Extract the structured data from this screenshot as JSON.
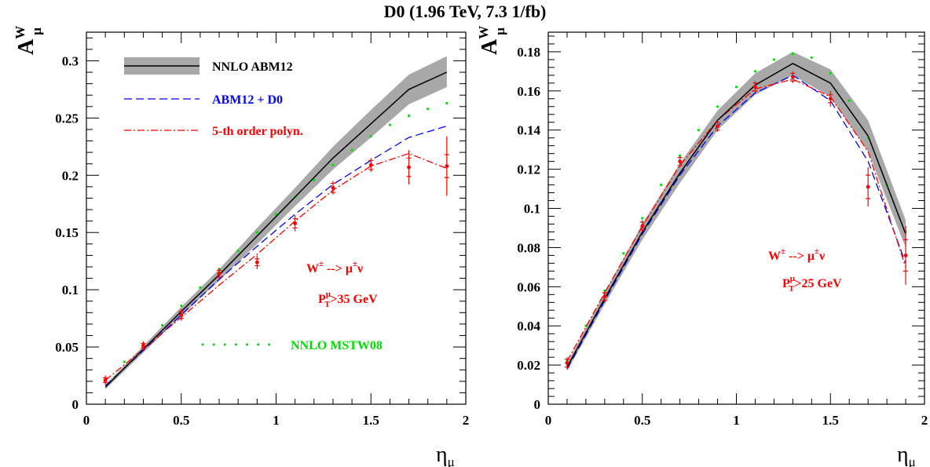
{
  "title": "D0 (1.96 TeV, 7.3 1/fb)",
  "colors": {
    "nnlo_abm12": "#000000",
    "band": "#a8a8a8",
    "abm12_d0": "#0000ff",
    "polyn": "#ff0000",
    "mstw08": "#00e000",
    "data": "#ff0000"
  },
  "chart_data": [
    {
      "type": "line",
      "panel": "left",
      "ylabel_main": "A",
      "ylabel_sup": "W",
      "ylabel_sub": "μ",
      "xlabel_main": "η",
      "xlabel_sub": "μ",
      "xlim": [
        0,
        2
      ],
      "ylim": [
        0,
        0.325
      ],
      "xticks": [
        0,
        0.5,
        1,
        1.5,
        2
      ],
      "xtick_labels": [
        "0",
        "0.5",
        "1",
        "1.5",
        "2"
      ],
      "yticks": [
        0,
        0.05,
        0.1,
        0.15,
        0.2,
        0.25,
        0.3
      ],
      "ytick_labels": [
        "0",
        "0.05",
        "0.1",
        "0.15",
        "0.2",
        "0.25",
        "0.3"
      ],
      "legend": [
        {
          "label": "NNLO ABM12",
          "style": "band",
          "color": "#000000"
        },
        {
          "label": "ABM12 + D0",
          "style": "dashed",
          "color": "#0000ff"
        },
        {
          "label": "5-th order polyn.",
          "style": "dashdot",
          "color": "#ff0000"
        },
        {
          "label": "NNLO MSTW08",
          "style": "dotted",
          "color": "#00e000"
        }
      ],
      "annotations": {
        "process": {
          "main": "W",
          "sup1": "±",
          "arrow": " --> μ",
          "sup2": "±",
          "tail": "ν"
        },
        "cut": {
          "main": "P",
          "sup": "μ",
          "sub": "T",
          "tail": ">35 GeV"
        }
      },
      "series": [
        {
          "name": "NNLO ABM12",
          "x": [
            0.1,
            0.3,
            0.5,
            0.7,
            0.9,
            1.1,
            1.3,
            1.5,
            1.7,
            1.9
          ],
          "y": [
            0.015,
            0.048,
            0.081,
            0.113,
            0.147,
            0.181,
            0.215,
            0.245,
            0.275,
            0.29
          ],
          "band_lo": [
            0.013,
            0.045,
            0.077,
            0.108,
            0.14,
            0.173,
            0.205,
            0.233,
            0.262,
            0.277
          ],
          "band_hi": [
            0.017,
            0.051,
            0.085,
            0.118,
            0.154,
            0.189,
            0.225,
            0.257,
            0.288,
            0.304
          ]
        },
        {
          "name": "ABM12 + D0",
          "x": [
            0.1,
            0.3,
            0.5,
            0.7,
            0.9,
            1.1,
            1.3,
            1.5,
            1.7,
            1.9
          ],
          "y": [
            0.016,
            0.047,
            0.078,
            0.109,
            0.138,
            0.166,
            0.192,
            0.213,
            0.233,
            0.243
          ]
        },
        {
          "name": "5-th order polyn.",
          "x": [
            0.1,
            0.3,
            0.5,
            0.7,
            0.9,
            1.1,
            1.3,
            1.5,
            1.7,
            1.9
          ],
          "y": [
            0.021,
            0.048,
            0.076,
            0.104,
            0.131,
            0.16,
            0.187,
            0.208,
            0.219,
            0.206
          ]
        },
        {
          "name": "NNLO MSTW08",
          "x": [
            0.1,
            0.2,
            0.3,
            0.4,
            0.5,
            0.6,
            0.7,
            0.8,
            0.9,
            1.0,
            1.1,
            1.2,
            1.3,
            1.4,
            1.5,
            1.6,
            1.7,
            1.8,
            1.9
          ],
          "y": [
            0.021,
            0.037,
            0.053,
            0.069,
            0.086,
            0.102,
            0.118,
            0.134,
            0.15,
            0.166,
            0.181,
            0.196,
            0.209,
            0.222,
            0.234,
            0.244,
            0.252,
            0.258,
            0.263
          ]
        },
        {
          "name": "data",
          "x": [
            0.1,
            0.3,
            0.5,
            0.7,
            0.9,
            1.1,
            1.3,
            1.5,
            1.7,
            1.9
          ],
          "y": [
            0.021,
            0.051,
            0.078,
            0.114,
            0.124,
            0.158,
            0.189,
            0.209,
            0.207,
            0.208
          ],
          "err_stat": [
            0.002,
            0.002,
            0.003,
            0.003,
            0.003,
            0.004,
            0.004,
            0.004,
            0.008,
            0.01
          ],
          "err_tot": [
            0.004,
            0.004,
            0.005,
            0.005,
            0.006,
            0.007,
            0.006,
            0.006,
            0.015,
            0.026
          ]
        }
      ]
    },
    {
      "type": "line",
      "panel": "right",
      "ylabel_main": "A",
      "ylabel_sup": "W",
      "ylabel_sub": "μ",
      "xlabel_main": "η",
      "xlabel_sub": "μ",
      "xlim": [
        0,
        2
      ],
      "ylim": [
        0,
        0.19
      ],
      "xticks": [
        0,
        0.5,
        1,
        1.5,
        2
      ],
      "xtick_labels": [
        "0",
        "0.5",
        "1",
        "1.5",
        "2"
      ],
      "yticks": [
        0,
        0.02,
        0.04,
        0.06,
        0.08,
        0.1,
        0.12,
        0.14,
        0.16,
        0.18
      ],
      "ytick_labels": [
        "0",
        "0.02",
        "0.04",
        "0.06",
        "0.08",
        "0.1",
        "0.12",
        "0.14",
        "0.16",
        "0.18"
      ],
      "annotations": {
        "process": {
          "main": "W",
          "sup1": "±",
          "arrow": " --> μ",
          "sup2": "±",
          "tail": "ν"
        },
        "cut": {
          "main": "P",
          "sup": "μ",
          "sub": "T",
          "tail": ">25 GeV"
        }
      },
      "series": [
        {
          "name": "NNLO ABM12",
          "x": [
            0.1,
            0.3,
            0.5,
            0.7,
            0.9,
            1.1,
            1.3,
            1.5,
            1.7,
            1.9
          ],
          "y": [
            0.019,
            0.054,
            0.088,
            0.118,
            0.145,
            0.163,
            0.174,
            0.164,
            0.137,
            0.087
          ],
          "band_lo": [
            0.017,
            0.051,
            0.084,
            0.113,
            0.14,
            0.158,
            0.168,
            0.157,
            0.129,
            0.08
          ],
          "band_hi": [
            0.021,
            0.057,
            0.092,
            0.123,
            0.15,
            0.169,
            0.18,
            0.171,
            0.145,
            0.094
          ]
        },
        {
          "name": "ABM12 + D0",
          "x": [
            0.1,
            0.3,
            0.5,
            0.7,
            0.9,
            1.1,
            1.3,
            1.5,
            1.7,
            1.9
          ],
          "y": [
            0.018,
            0.053,
            0.087,
            0.117,
            0.142,
            0.159,
            0.168,
            0.155,
            0.124,
            0.072
          ]
        },
        {
          "name": "5-th order polyn.",
          "x": [
            0.1,
            0.3,
            0.5,
            0.7,
            0.9,
            1.1,
            1.3,
            1.5,
            1.7,
            1.9
          ],
          "y": [
            0.022,
            0.057,
            0.091,
            0.122,
            0.145,
            0.161,
            0.166,
            0.157,
            0.129,
            0.07
          ]
        },
        {
          "name": "NNLO MSTW08",
          "x": [
            0.1,
            0.2,
            0.3,
            0.4,
            0.5,
            0.6,
            0.7,
            0.8,
            0.9,
            1.0,
            1.1,
            1.2,
            1.3,
            1.4,
            1.5,
            1.6,
            1.7,
            1.8,
            1.9
          ],
          "y": [
            0.022,
            0.04,
            0.058,
            0.077,
            0.095,
            0.112,
            0.127,
            0.14,
            0.152,
            0.162,
            0.17,
            0.176,
            0.179,
            0.177,
            0.169,
            0.155,
            0.136,
            0.112,
            0.088
          ]
        },
        {
          "name": "data",
          "x": [
            0.1,
            0.3,
            0.5,
            0.7,
            0.9,
            1.1,
            1.3,
            1.5,
            1.7,
            1.9
          ],
          "y": [
            0.021,
            0.055,
            0.091,
            0.124,
            0.142,
            0.162,
            0.167,
            0.156,
            0.111,
            0.076
          ],
          "err_stat": [
            0.002,
            0.002,
            0.002,
            0.002,
            0.002,
            0.002,
            0.002,
            0.002,
            0.006,
            0.008
          ],
          "err_tot": [
            0.003,
            0.003,
            0.003,
            0.003,
            0.003,
            0.003,
            0.003,
            0.004,
            0.01,
            0.015
          ]
        }
      ]
    }
  ]
}
